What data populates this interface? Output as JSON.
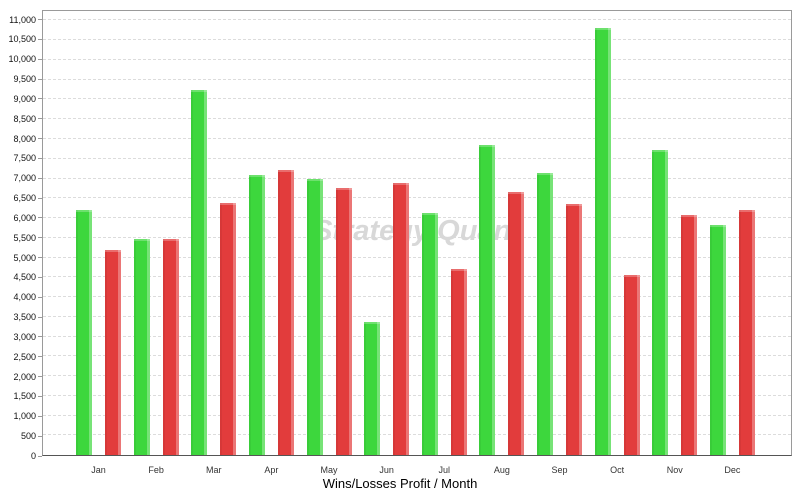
{
  "chart": {
    "watermark": "Strategy Quant",
    "axis_title": "Wins/Losses Profit / Month"
  },
  "colors": {
    "win": "#3dd73d",
    "loss": "#e23c3c",
    "grid": "#dcdcdc",
    "watermark": "#d8d8d8",
    "plot_border": "#9a9a9a"
  },
  "chart_data": {
    "type": "bar",
    "title": "Wins/Losses Profit / Month",
    "xlabel": "Wins/Losses Profit / Month",
    "ylabel": "",
    "categories": [
      "Jan",
      "Feb",
      "Mar",
      "Apr",
      "May",
      "Jun",
      "Jul",
      "Aug",
      "Sep",
      "Oct",
      "Nov",
      "Dec"
    ],
    "series": [
      {
        "name": "Wins",
        "color": "#3dd73d",
        "values": [
          6200,
          5460,
          9240,
          7080,
          7000,
          3370,
          6120,
          7850,
          7130,
          10800,
          7730,
          5830
        ]
      },
      {
        "name": "Losses",
        "color": "#e23c3c",
        "values": [
          5190,
          5470,
          6370,
          7210,
          6770,
          6880,
          4720,
          6660,
          6360,
          4550,
          6070,
          6210
        ]
      }
    ],
    "ylim": [
      0,
      11240
    ],
    "y_tick_step": 500,
    "y_tick_labels": [
      "0",
      "500",
      "1,000",
      "1,500",
      "2,000",
      "2,500",
      "3,000",
      "3,500",
      "4,000",
      "4,500",
      "5,000",
      "5,500",
      "6,000",
      "6,500",
      "7,000",
      "7,500",
      "8,000",
      "8,500",
      "9,000",
      "9,500",
      "10,000",
      "10,500",
      "11,000"
    ],
    "grid": "horizontal-dashed",
    "legend": "none"
  }
}
